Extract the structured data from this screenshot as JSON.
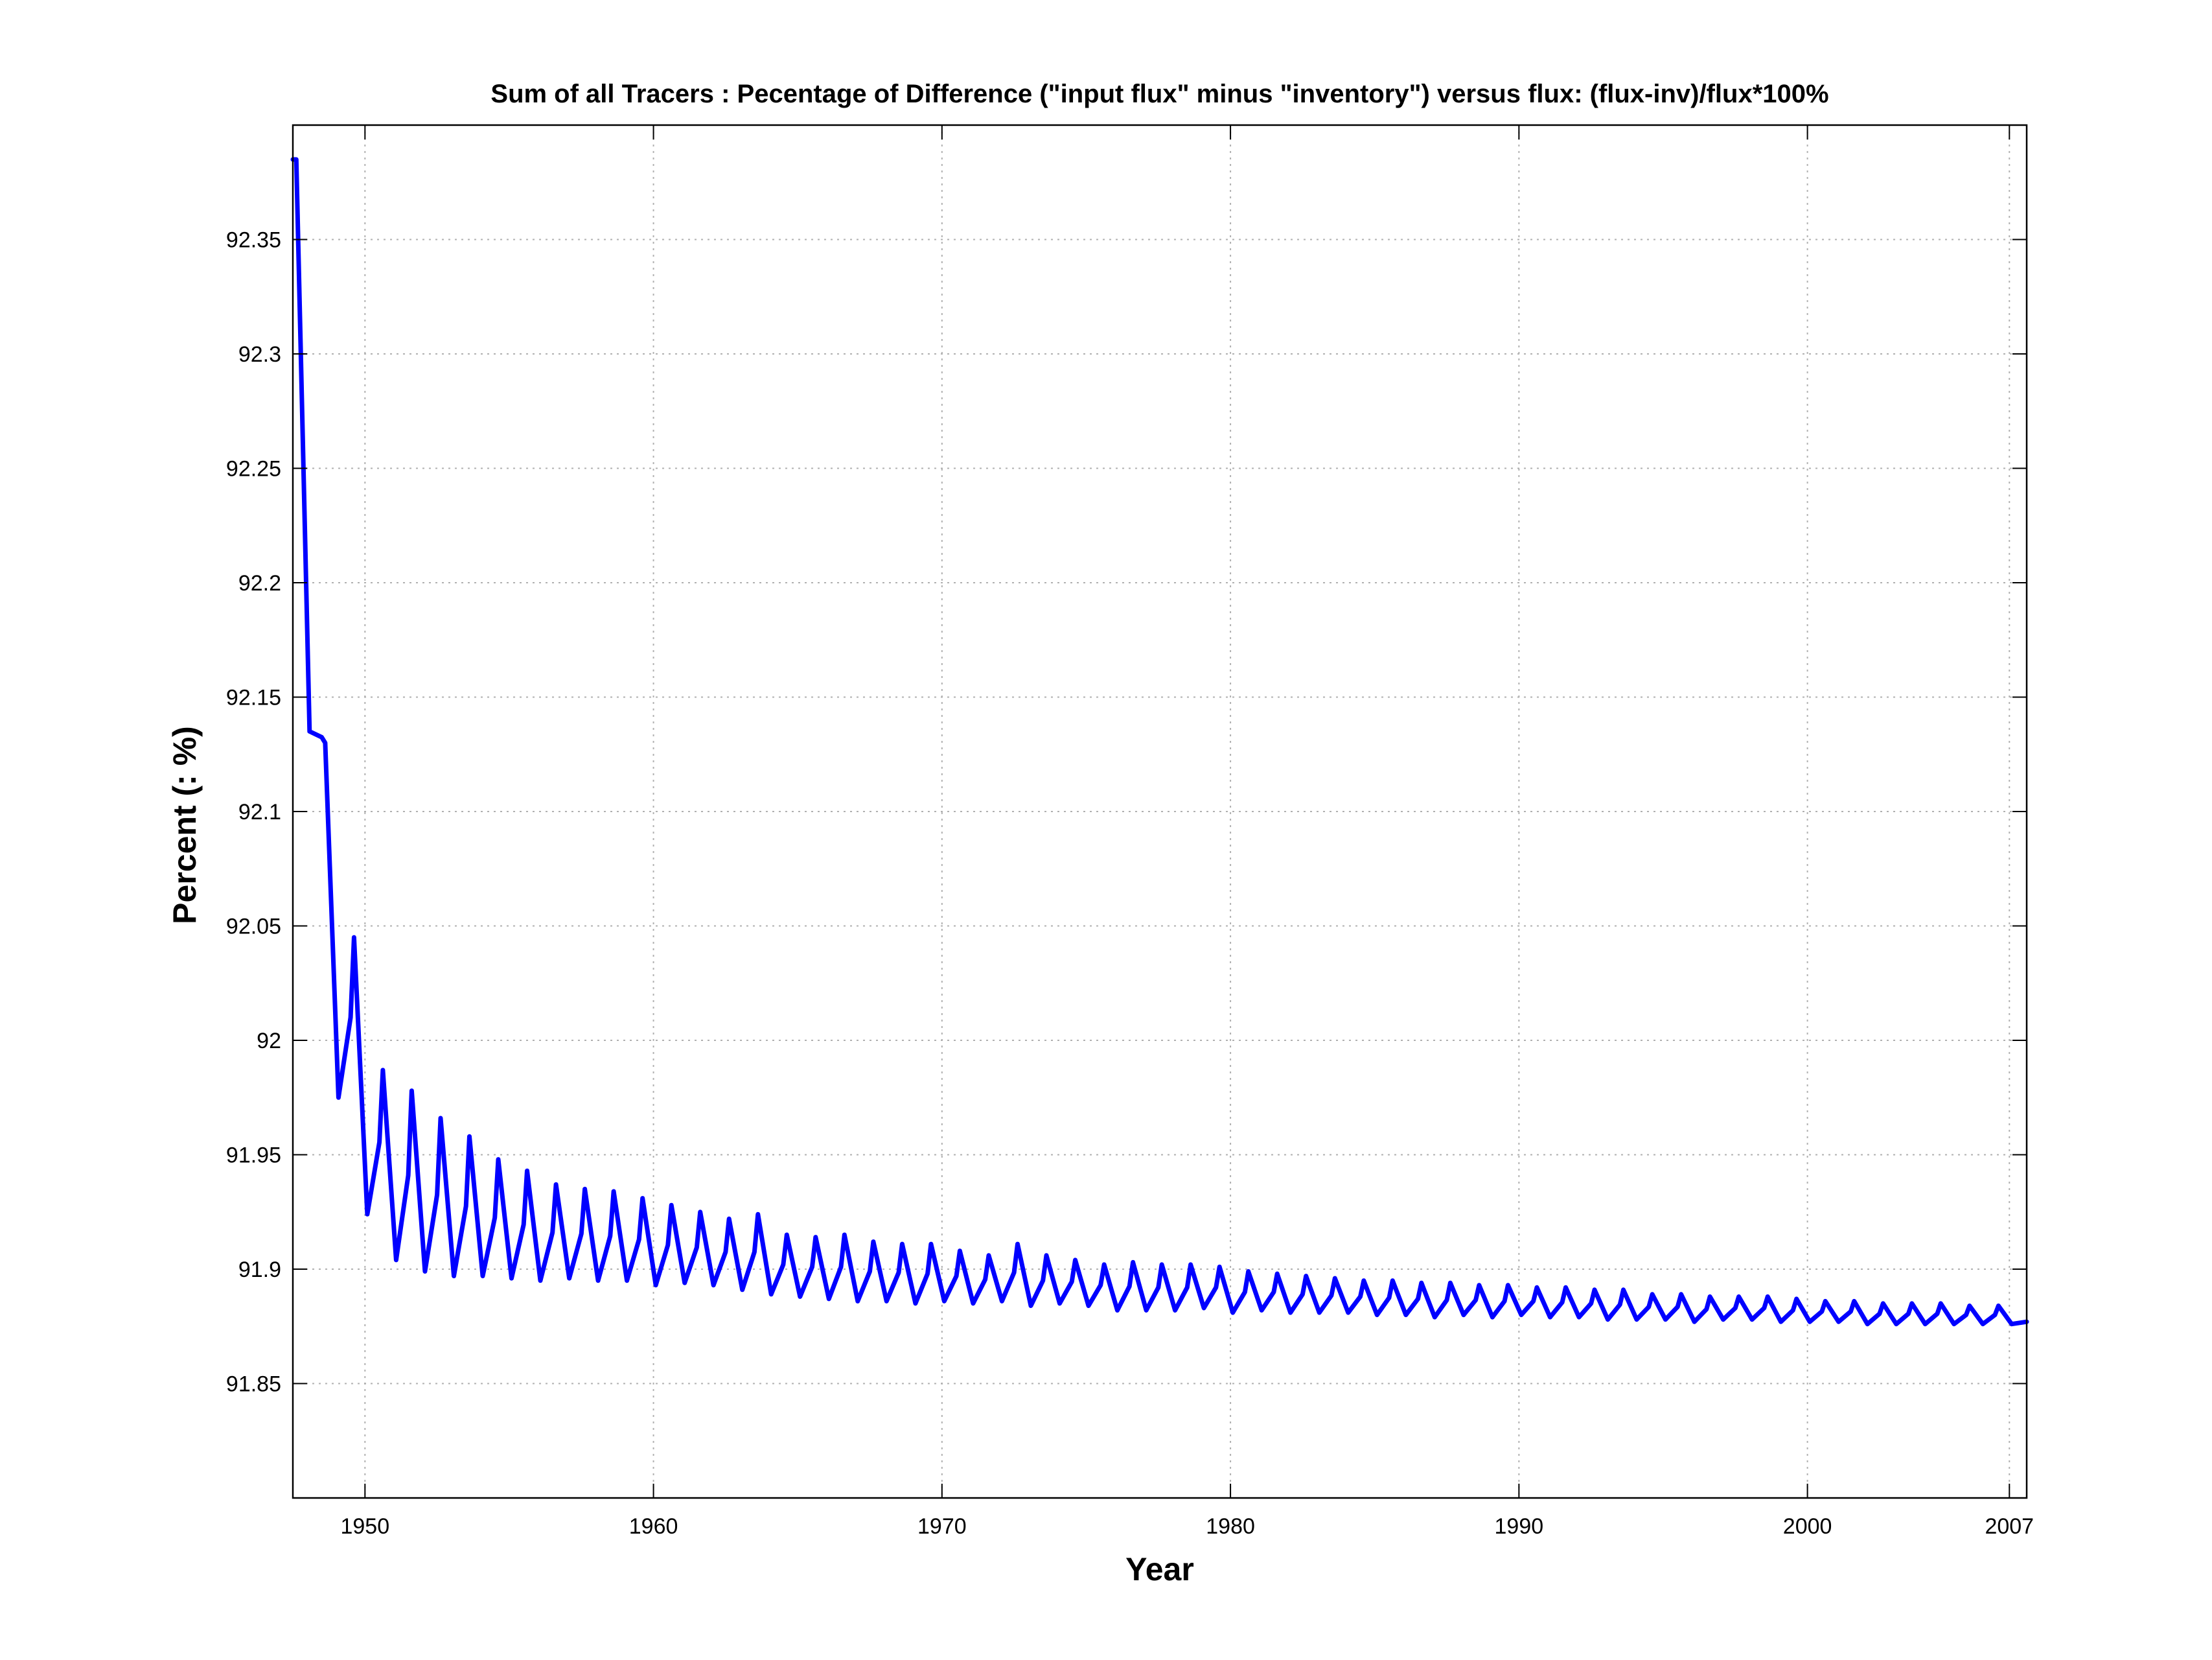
{
  "chart_data": {
    "type": "line",
    "title": "Sum of all Tracers : Pecentage of Difference (\"input flux\" minus \"inventory\") versus flux: (flux-inv)/flux*100%",
    "xlabel": "Year",
    "ylabel": "Percent (: %)",
    "xlim": [
      1947.5,
      2007.6
    ],
    "ylim": [
      91.8,
      92.4
    ],
    "grid": true,
    "x_ticks": [
      1950,
      1960,
      1970,
      1980,
      1990,
      2000,
      2007
    ],
    "x_tick_labels": [
      "1950",
      "1960",
      "1970",
      "1980",
      "1990",
      "2000",
      "2007"
    ],
    "y_ticks": [
      91.85,
      91.9,
      91.95,
      92,
      92.05,
      92.1,
      92.15,
      92.2,
      92.25,
      92.3,
      92.35
    ],
    "y_tick_labels": [
      "91.85",
      "91.9",
      "91.95",
      "92",
      "92.05",
      "92.1",
      "92.15",
      "92.2",
      "92.25",
      "92.3",
      "92.35"
    ],
    "series": [
      {
        "color": "#0000ff",
        "sampling": "annual cycle: value at each year's start, annual maximum, annual minimum",
        "x_start": 1947.5,
        "x_step": 1,
        "x": [
          1947.5,
          1948.5,
          1949.5,
          1950.5,
          1951.5,
          1952.5,
          1953.5,
          1954.5,
          1955.5,
          1956.5,
          1957.5,
          1958.5,
          1959.5,
          1960.5,
          1961.5,
          1962.5,
          1963.5,
          1964.5,
          1965.5,
          1966.5,
          1967.5,
          1968.5,
          1969.5,
          1970.5,
          1971.5,
          1972.5,
          1973.5,
          1974.5,
          1975.5,
          1976.5,
          1977.5,
          1978.5,
          1979.5,
          1980.5,
          1981.5,
          1982.5,
          1983.5,
          1984.5,
          1985.5,
          1986.5,
          1987.5,
          1988.5,
          1989.5,
          1990.5,
          1991.5,
          1992.5,
          1993.5,
          1994.5,
          1995.5,
          1996.5,
          1997.5,
          1998.5,
          1999.5,
          2000.5,
          2001.5,
          2002.5,
          2003.5,
          2004.5,
          2005.5,
          2006.5
        ],
        "maxima": [
          92.385,
          92.13,
          92.045,
          91.987,
          91.978,
          91.966,
          91.958,
          91.948,
          91.943,
          91.937,
          91.935,
          91.934,
          91.931,
          91.928,
          91.925,
          91.922,
          91.924,
          91.915,
          91.914,
          91.915,
          91.912,
          91.911,
          91.911,
          91.908,
          91.906,
          91.911,
          91.906,
          91.904,
          91.902,
          91.903,
          91.902,
          91.902,
          91.901,
          91.899,
          91.898,
          91.897,
          91.896,
          91.895,
          91.895,
          91.894,
          91.894,
          91.893,
          91.893,
          91.892,
          91.892,
          91.891,
          91.891,
          91.889,
          91.889,
          91.888,
          91.888,
          91.888,
          91.887,
          91.886,
          91.886,
          91.885,
          91.885,
          91.885,
          91.884,
          91.884
        ],
        "minima": [
          92.135,
          91.975,
          91.924,
          91.904,
          91.899,
          91.897,
          91.897,
          91.896,
          91.895,
          91.896,
          91.895,
          91.895,
          91.893,
          91.894,
          91.893,
          91.891,
          91.889,
          91.888,
          91.887,
          91.886,
          91.886,
          91.885,
          91.886,
          91.885,
          91.886,
          91.884,
          91.885,
          91.884,
          91.882,
          91.882,
          91.882,
          91.883,
          91.881,
          91.882,
          91.881,
          91.881,
          91.881,
          91.88,
          91.88,
          91.879,
          91.88,
          91.879,
          91.88,
          91.879,
          91.879,
          91.878,
          91.878,
          91.878,
          91.877,
          91.878,
          91.878,
          91.877,
          91.877,
          91.877,
          91.876,
          91.876,
          91.876,
          91.876,
          91.876,
          91.876
        ],
        "end": {
          "x": 2007.6,
          "y": 91.877
        }
      }
    ]
  }
}
